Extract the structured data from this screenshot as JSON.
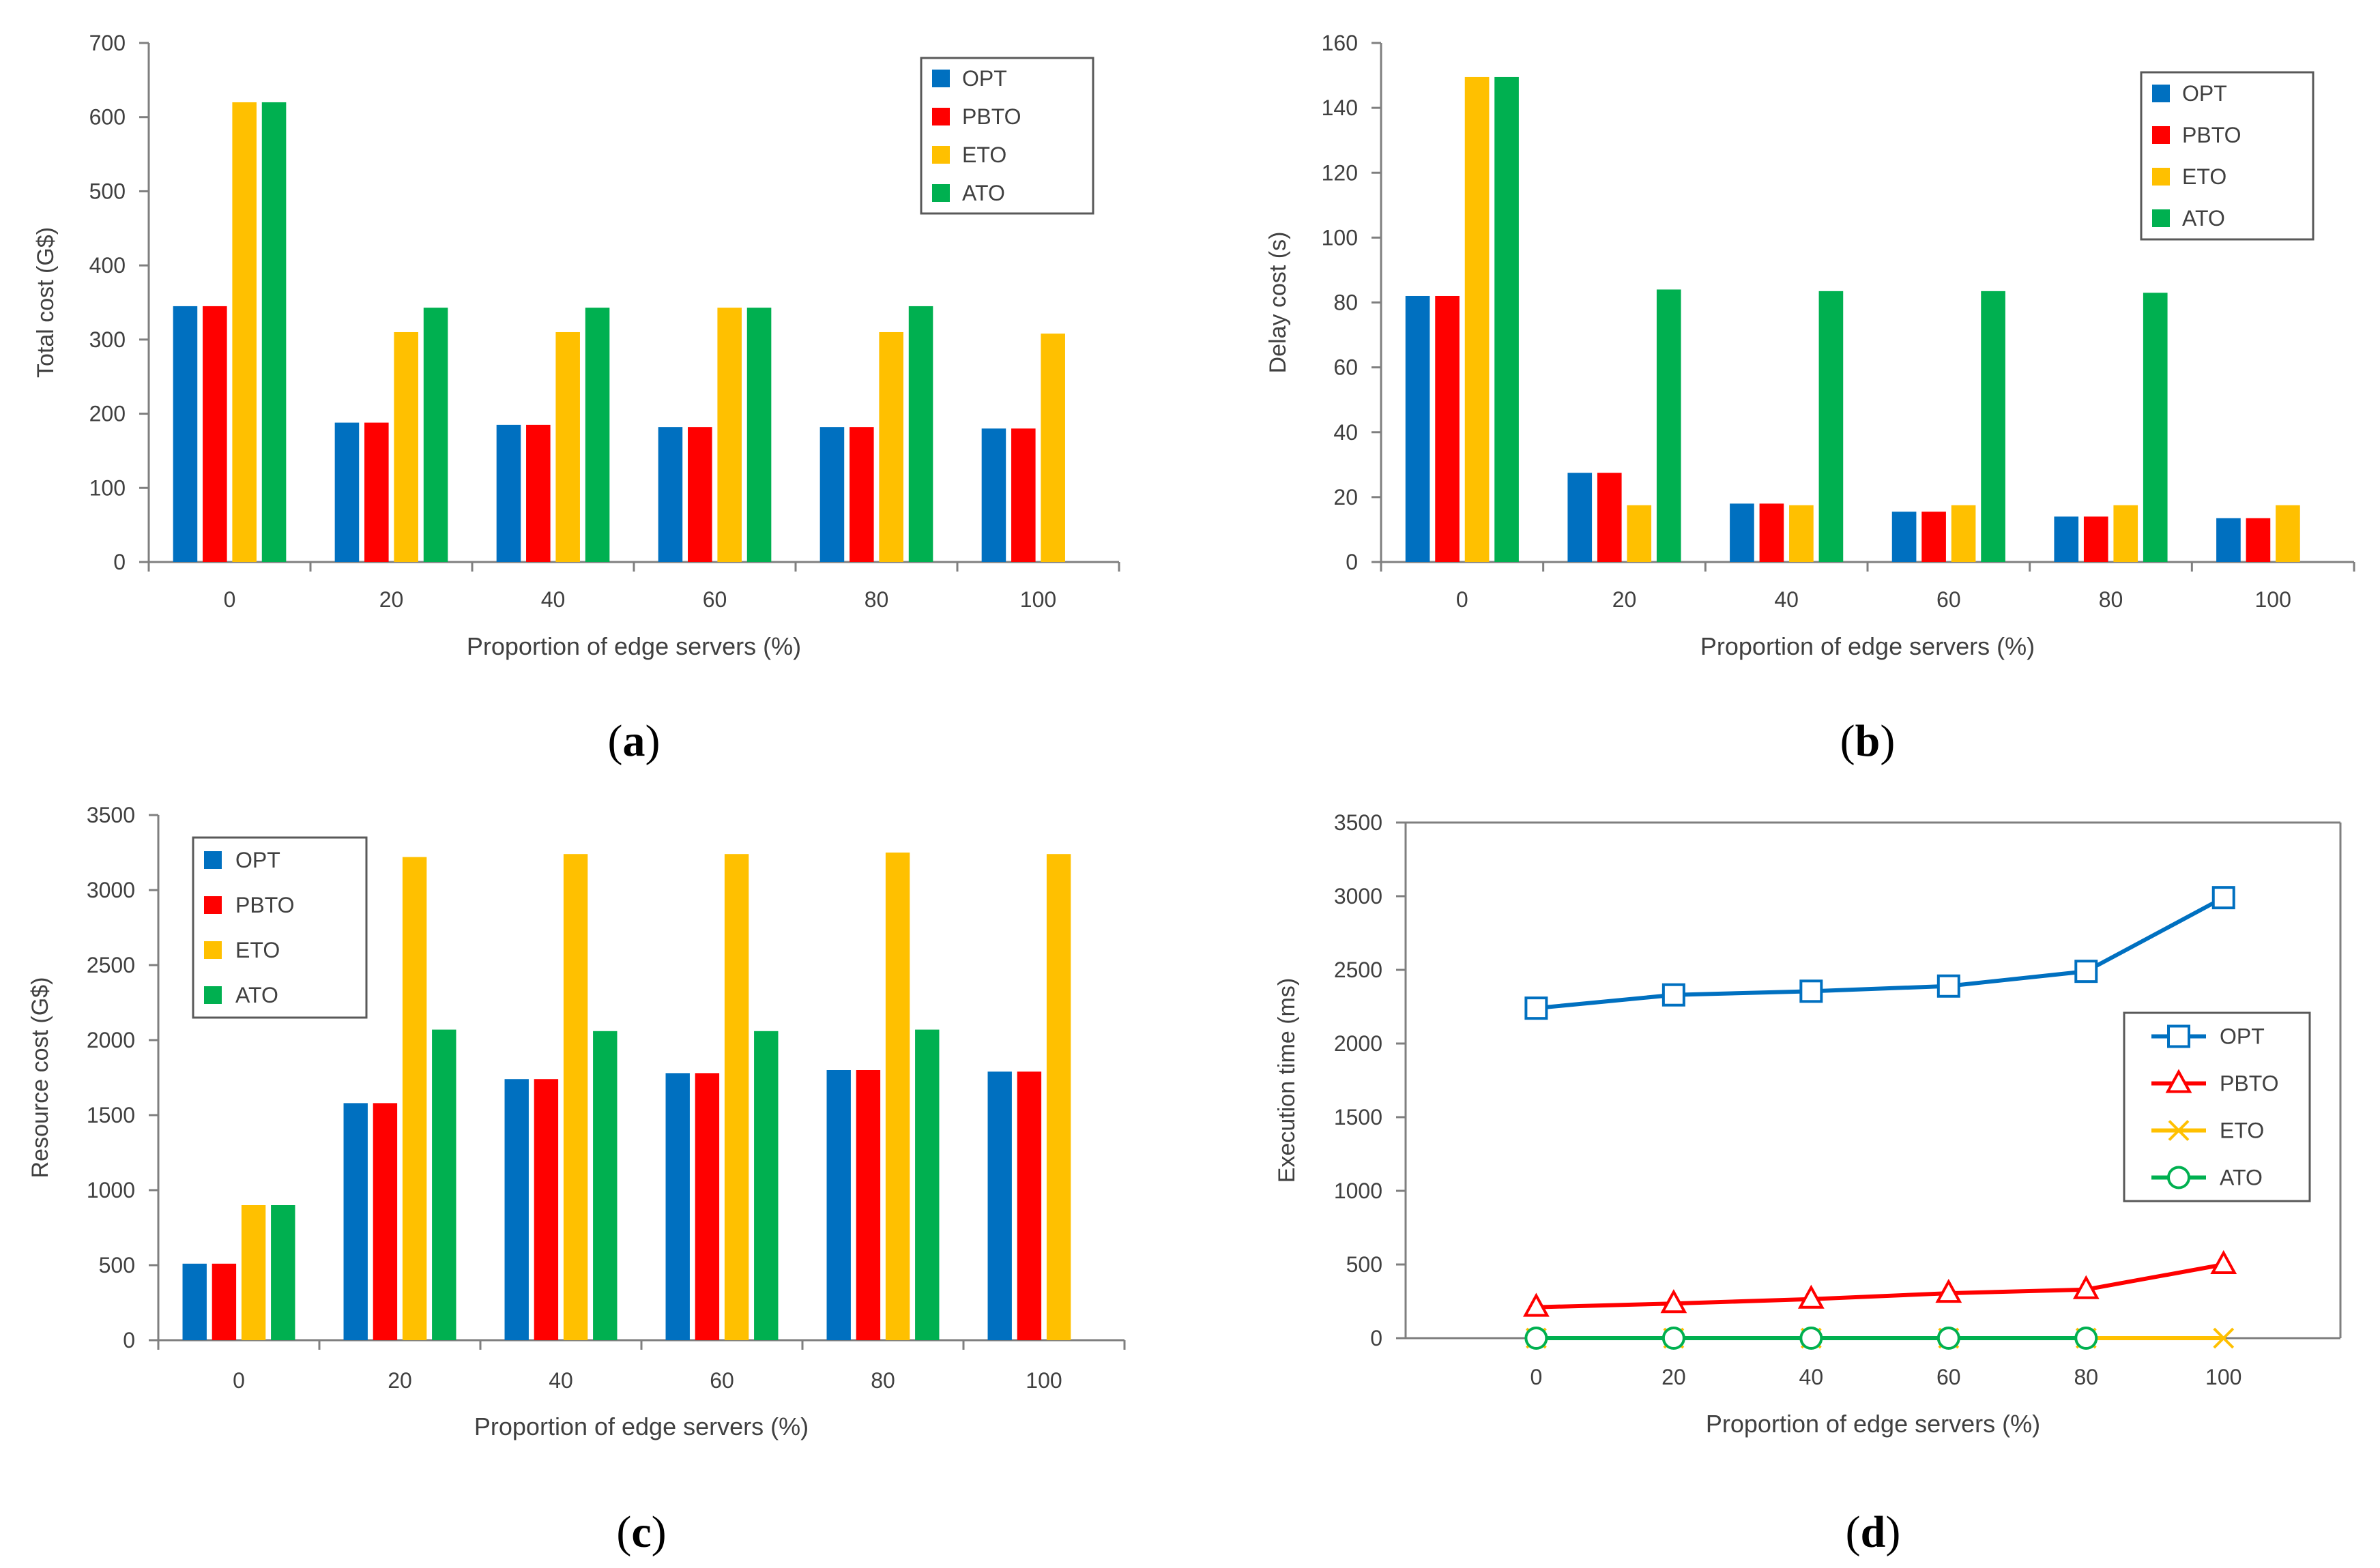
{
  "colors": {
    "OPT": "#0070c0",
    "PBTO": "#ff0000",
    "ETO": "#ffc000",
    "ATO": "#00b050",
    "axis": "#7f7f7f",
    "text": "#404040"
  },
  "chart_data": [
    {
      "id": "a",
      "type": "bar",
      "caption": "a",
      "title": "",
      "xlabel": "Proportion of edge servers (%)",
      "ylabel": "Total cost (G$)",
      "ylim": [
        0,
        700
      ],
      "yticks": [
        "0",
        "100",
        "200",
        "300",
        "400",
        "500",
        "600",
        "700"
      ],
      "categories": [
        "0",
        "20",
        "40",
        "60",
        "80",
        "100"
      ],
      "legend_position": "top-right",
      "grid": false,
      "series": [
        {
          "name": "OPT",
          "values": [
            345,
            188,
            185,
            182,
            182,
            180
          ]
        },
        {
          "name": "PBTO",
          "values": [
            345,
            188,
            185,
            182,
            182,
            180
          ]
        },
        {
          "name": "ETO",
          "values": [
            620,
            310,
            310,
            343,
            310,
            308
          ]
        },
        {
          "name": "ATO",
          "values": [
            620,
            343,
            343,
            343,
            345,
            0
          ]
        }
      ]
    },
    {
      "id": "b",
      "type": "bar",
      "caption": "b",
      "title": "",
      "xlabel": "Proportion of edge servers (%)",
      "ylabel": "Delay cost (s)",
      "ylim": [
        0,
        160
      ],
      "yticks": [
        "0",
        "20",
        "40",
        "60",
        "80",
        "100",
        "120",
        "140",
        "160"
      ],
      "categories": [
        "0",
        "20",
        "40",
        "60",
        "80",
        "100"
      ],
      "legend_position": "top-right",
      "grid": false,
      "series": [
        {
          "name": "OPT",
          "values": [
            82,
            27.5,
            18,
            15.5,
            14,
            13.5
          ]
        },
        {
          "name": "PBTO",
          "values": [
            82,
            27.5,
            18,
            15.5,
            14,
            13.5
          ]
        },
        {
          "name": "ETO",
          "values": [
            149.5,
            17.5,
            17.5,
            17.5,
            17.5,
            17.5
          ]
        },
        {
          "name": "ATO",
          "values": [
            149.5,
            84,
            83.5,
            83.5,
            83,
            0
          ]
        }
      ]
    },
    {
      "id": "c",
      "type": "bar",
      "caption": "c",
      "title": "",
      "xlabel": "Proportion of edge servers (%)",
      "ylabel": "Resource cost (G$)",
      "ylim": [
        0,
        3500
      ],
      "yticks": [
        "0",
        "500",
        "1000",
        "1500",
        "2000",
        "2500",
        "3000",
        "3500"
      ],
      "categories": [
        "0",
        "20",
        "40",
        "60",
        "80",
        "100"
      ],
      "legend_position": "top-left",
      "grid": false,
      "series": [
        {
          "name": "OPT",
          "values": [
            510,
            1580,
            1740,
            1780,
            1800,
            1790
          ]
        },
        {
          "name": "PBTO",
          "values": [
            510,
            1580,
            1740,
            1780,
            1800,
            1790
          ]
        },
        {
          "name": "ETO",
          "values": [
            900,
            3220,
            3240,
            3240,
            3250,
            3240
          ]
        },
        {
          "name": "ATO",
          "values": [
            900,
            2070,
            2060,
            2060,
            2070,
            0
          ]
        }
      ]
    },
    {
      "id": "d",
      "type": "line",
      "caption": "d",
      "title": "",
      "xlabel": "Proportion of edge servers (%)",
      "ylabel": "Execution time (ms)",
      "ylim": [
        0,
        3500
      ],
      "yticks": [
        "0",
        "500",
        "1000",
        "1500",
        "2000",
        "2500",
        "3000",
        "3500"
      ],
      "x": [
        "0",
        "20",
        "40",
        "60",
        "80",
        "100"
      ],
      "legend_position": "right",
      "grid": false,
      "series": [
        {
          "name": "OPT",
          "marker": "square",
          "values": [
            2240,
            2330,
            2355,
            2390,
            2490,
            2990
          ]
        },
        {
          "name": "PBTO",
          "marker": "triangle",
          "values": [
            210,
            235,
            265,
            305,
            330,
            500
          ]
        },
        {
          "name": "ETO",
          "marker": "x",
          "values": [
            0,
            0,
            0,
            0,
            0,
            0
          ]
        },
        {
          "name": "ATO",
          "marker": "circle",
          "values": [
            0,
            0,
            0,
            0,
            0,
            null
          ]
        }
      ]
    }
  ]
}
